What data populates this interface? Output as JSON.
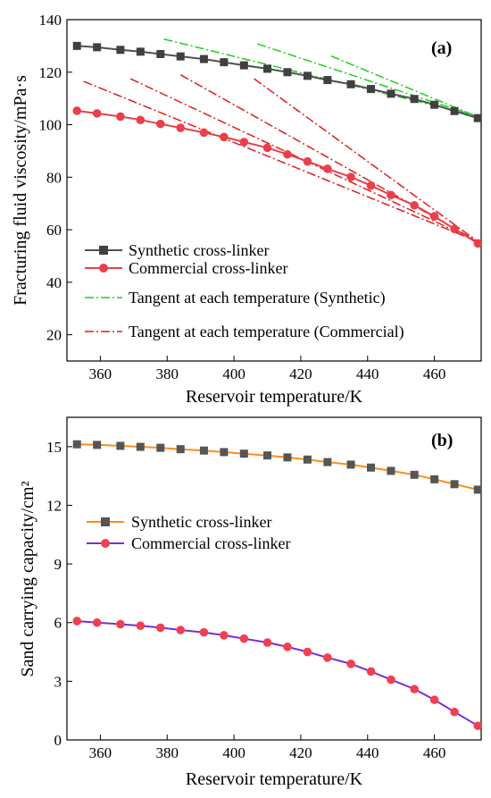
{
  "chart_data": [
    {
      "type": "line",
      "panel_tag": "(a)",
      "xlabel": "Reservoir temperature/K",
      "ylabel": "Fracturing fluid viscosity/mPa·s",
      "xlim": [
        350,
        474
      ],
      "ylim": [
        10,
        140
      ],
      "xticks": [
        360,
        380,
        400,
        420,
        440,
        460
      ],
      "yticks": [
        20,
        40,
        60,
        80,
        100,
        120,
        140
      ],
      "grid": false,
      "legend_position": "bottom-left",
      "series": [
        {
          "name": "Synthetic cross-linker",
          "color": "#404040",
          "line_color": "#505050",
          "marker": "square",
          "points": [
            [
              353,
              130.0
            ],
            [
              359,
              129.5
            ],
            [
              366,
              128.5
            ],
            [
              372,
              127.8
            ],
            [
              378,
              126.9
            ],
            [
              384,
              126.0
            ],
            [
              391,
              125.0
            ],
            [
              397,
              123.8
            ],
            [
              403,
              122.6
            ],
            [
              410,
              121.3
            ],
            [
              416,
              120.0
            ],
            [
              422,
              118.6
            ],
            [
              428,
              117.0
            ],
            [
              435,
              115.4
            ],
            [
              441,
              113.6
            ],
            [
              447,
              111.8
            ],
            [
              454,
              109.8
            ],
            [
              460,
              107.6
            ],
            [
              466,
              105.2
            ],
            [
              473,
              102.5
            ]
          ]
        },
        {
          "name": "Commercial cross-linker",
          "color": "#e8404a",
          "line_color": "#e8404a",
          "marker": "circle",
          "points": [
            [
              353,
              105.3
            ],
            [
              359,
              104.3
            ],
            [
              366,
              103.1
            ],
            [
              372,
              101.8
            ],
            [
              378,
              100.3
            ],
            [
              384,
              98.8
            ],
            [
              391,
              97.0
            ],
            [
              397,
              95.3
            ],
            [
              403,
              93.4
            ],
            [
              410,
              91.2
            ],
            [
              416,
              88.7
            ],
            [
              422,
              86.0
            ],
            [
              428,
              83.2
            ],
            [
              435,
              80.1
            ],
            [
              441,
              76.8
            ],
            [
              447,
              73.2
            ],
            [
              454,
              69.3
            ],
            [
              460,
              65.1
            ],
            [
              466,
              60.3
            ],
            [
              473,
              54.8
            ]
          ]
        }
      ],
      "tangents": [
        {
          "name": "Tangent at each temperature (Synthetic)",
          "color": "#22cc22",
          "lines": [
            [
              [
                379,
                132.6
              ],
              [
                473,
                103.2
              ]
            ],
            [
              [
                407,
                130.8
              ],
              [
                473,
                103.0
              ]
            ],
            [
              [
                429,
                126.2
              ],
              [
                473,
                103.0
              ]
            ]
          ]
        },
        {
          "name": "Tangent at each temperature (Commercial)",
          "color": "#e21b1b",
          "lines": [
            [
              [
                355,
                116.5
              ],
              [
                473,
                55.5
              ]
            ],
            [
              [
                369,
                117.5
              ],
              [
                473,
                55.5
              ]
            ],
            [
              [
                384,
                119.0
              ],
              [
                473,
                55.5
              ]
            ],
            [
              [
                406,
                117.5
              ],
              [
                473,
                55.5
              ]
            ]
          ]
        }
      ]
    },
    {
      "type": "line",
      "panel_tag": "(b)",
      "xlabel": "Reservoir temperature/K",
      "ylabel": "Sand carrying capacity/cm²",
      "xlim": [
        350,
        474
      ],
      "ylim": [
        0,
        16.5
      ],
      "xticks": [
        360,
        380,
        400,
        420,
        440,
        460
      ],
      "yticks": [
        0,
        3,
        6,
        9,
        12,
        15
      ],
      "grid": false,
      "legend_position": "middle-left",
      "series": [
        {
          "name": "Synthetic cross-linker",
          "color": "#555555",
          "line_color": "#ff8c1a",
          "marker": "square",
          "points": [
            [
              353,
              15.12
            ],
            [
              359,
              15.09
            ],
            [
              366,
              15.04
            ],
            [
              372,
              14.99
            ],
            [
              378,
              14.94
            ],
            [
              384,
              14.87
            ],
            [
              391,
              14.8
            ],
            [
              397,
              14.72
            ],
            [
              403,
              14.64
            ],
            [
              410,
              14.55
            ],
            [
              416,
              14.45
            ],
            [
              422,
              14.34
            ],
            [
              428,
              14.21
            ],
            [
              435,
              14.08
            ],
            [
              441,
              13.93
            ],
            [
              447,
              13.76
            ],
            [
              454,
              13.56
            ],
            [
              460,
              13.33
            ],
            [
              466,
              13.08
            ],
            [
              473,
              12.8
            ]
          ]
        },
        {
          "name": "Commercial cross-linker",
          "color": "#f04050",
          "line_color": "#7a2be2",
          "marker": "circle",
          "points": [
            [
              353,
              6.08
            ],
            [
              359,
              6.0
            ],
            [
              366,
              5.92
            ],
            [
              372,
              5.84
            ],
            [
              378,
              5.74
            ],
            [
              384,
              5.62
            ],
            [
              391,
              5.5
            ],
            [
              397,
              5.35
            ],
            [
              403,
              5.18
            ],
            [
              410,
              4.98
            ],
            [
              416,
              4.76
            ],
            [
              422,
              4.5
            ],
            [
              428,
              4.21
            ],
            [
              435,
              3.89
            ],
            [
              441,
              3.5
            ],
            [
              447,
              3.08
            ],
            [
              454,
              2.6
            ],
            [
              460,
              2.05
            ],
            [
              466,
              1.43
            ],
            [
              473,
              0.72
            ]
          ]
        }
      ]
    }
  ]
}
